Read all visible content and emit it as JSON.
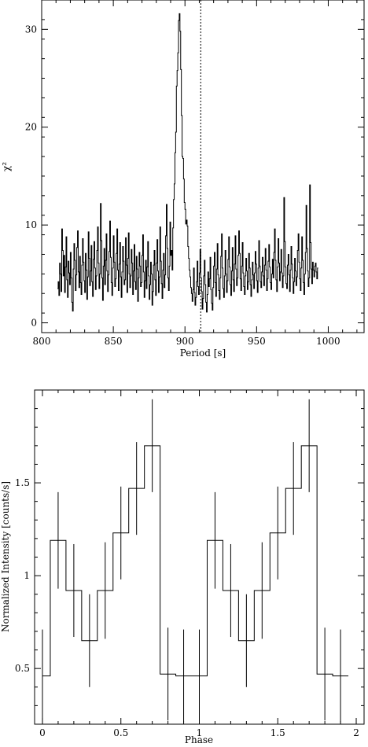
{
  "chart_data": [
    {
      "type": "line",
      "drawstyle": "steps",
      "xlabel": "Period [s]",
      "ylabel": "χ²",
      "xlim": [
        800,
        1025
      ],
      "ylim": [
        -1,
        33
      ],
      "xticks": [
        800,
        850,
        900,
        950,
        1000
      ],
      "yticks": [
        0,
        10,
        20,
        30
      ],
      "xtick_labels": [
        "800",
        "850",
        "900",
        "950",
        "1000"
      ],
      "ytick_labels": [
        "0",
        "10",
        "20",
        "30"
      ],
      "marker_line": {
        "x": 911,
        "style": "dotted"
      },
      "series": [
        {
          "x_start": 811,
          "x_step": 0.5,
          "values": [
            3.5,
            4.2,
            2.8,
            6.1,
            5.0,
            3.2,
            9.6,
            7.4,
            4.8,
            6.9,
            3.1,
            5.7,
            8.8,
            4.4,
            2.6,
            6.3,
            5.1,
            3.9,
            7.2,
            4.6,
            2.1,
            1.2,
            5.5,
            8.1,
            6.4,
            3.3,
            4.9,
            7.7,
            9.4,
            5.2,
            3.6,
            6.8,
            4.1,
            2.9,
            5.9,
            8.6,
            6.2,
            4.3,
            3.1,
            7.1,
            5.4,
            2.4,
            4.7,
            9.3,
            6.6,
            3.8,
            5.3,
            7.9,
            4.2,
            2.7,
            6.5,
            8.3,
            5.6,
            3.4,
            4.8,
            7.4,
            9.8,
            6.1,
            3.5,
            5.0,
            12.2,
            8.4,
            4.6,
            2.3,
            5.8,
            7.6,
            3.9,
            6.4,
            9.1,
            5.3,
            3.2,
            4.9,
            7.3,
            10.4,
            6.7,
            4.1,
            2.8,
            5.6,
            8.9,
            6.2,
            3.7,
            4.5,
            7.1,
            9.6,
            5.4,
            3.3,
            6.0,
            8.2,
            4.7,
            2.6,
            5.2,
            7.8,
            6.3,
            3.9,
            4.4,
            8.7,
            5.9,
            3.1,
            6.6,
            9.2,
            5.0,
            3.6,
            4.8,
            7.5,
            6.1,
            2.9,
            5.3,
            8.0,
            4.2,
            3.4,
            6.8,
            5.5,
            2.2,
            4.6,
            7.2,
            5.8,
            3.7,
            4.1,
            6.9,
            9.0,
            5.2,
            2.6,
            4.3,
            6.4,
            3.5,
            5.7,
            8.3,
            4.8,
            2.4,
            3.9,
            6.2,
            5.0,
            1.8,
            3.2,
            5.9,
            7.4,
            4.4,
            2.8,
            6.1,
            8.5,
            5.3,
            3.1,
            4.7,
            9.8,
            6.3,
            4.0,
            2.5,
            5.4,
            7.1,
            3.6,
            4.9,
            8.9,
            12.1,
            7.6,
            4.6,
            3.3,
            5.8,
            10.3,
            6.9,
            7.4,
            5.4,
            9.7,
            12.6,
            14.2,
            17.4,
            19.5,
            24.2,
            25.8,
            27.6,
            30.9,
            31.6,
            29.8,
            25.9,
            21.2,
            17.0,
            16.8,
            14.7,
            12.3,
            11.6,
            10.1,
            10.5,
            9.9,
            7.8,
            6.6,
            5.4,
            4.7,
            3.6,
            3.0,
            2.2,
            3.4,
            5.6,
            3.1,
            1.8,
            2.6,
            4.2,
            6.3,
            3.7,
            2.9,
            5.1,
            7.5,
            4.6,
            3.2,
            1.4,
            2.5,
            4.8,
            6.4,
            3.9,
            2.1,
            1.1,
            2.9,
            5.2,
            3.7,
            4.5,
            6.7,
            3.4,
            2.0,
            1.3,
            3.6,
            5.8,
            7.2,
            4.1,
            2.7,
            5.5,
            8.1,
            4.9,
            3.3,
            2.4,
            4.6,
            6.8,
            9.1,
            5.6,
            3.5,
            2.6,
            4.8,
            7.4,
            5.0,
            3.1,
            4.3,
            6.5,
            8.8,
            5.7,
            3.9,
            2.8,
            5.3,
            7.7,
            4.4,
            3.2,
            6.0,
            8.9,
            5.5,
            3.8,
            4.6,
            6.9,
            9.4,
            7.1,
            4.5,
            3.3,
            5.8,
            8.2,
            5.1,
            3.7,
            2.9,
            4.8,
            6.6,
            5.3,
            3.4,
            4.2,
            7.1,
            5.6,
            3.9,
            2.7,
            4.4,
            6.2,
            4.9,
            3.5,
            5.1,
            7.3,
            6.0,
            4.3,
            3.1,
            5.6,
            8.4,
            5.8,
            4.2,
            3.6,
            5.2,
            6.7,
            4.8,
            3.8,
            5.9,
            7.6,
            5.4,
            3.3,
            4.5,
            6.3,
            8.0,
            5.7,
            4.1,
            3.4,
            5.0,
            6.5,
            4.6,
            7.2,
            9.6,
            6.4,
            4.4,
            3.2,
            5.7,
            8.6,
            6.1,
            4.3,
            5.2,
            7.5,
            5.1,
            3.6,
            4.8,
            12.8,
            8.3,
            5.7,
            4.0,
            3.5,
            5.9,
            7.0,
            4.9,
            3.2,
            5.4,
            7.8,
            6.0,
            4.6,
            3.0,
            4.2,
            6.6,
            5.3,
            3.8,
            4.7,
            7.4,
            9.1,
            6.2,
            4.5,
            3.3,
            5.6,
            8.8,
            6.4,
            4.1,
            2.9,
            5.0,
            7.2,
            12.0,
            7.6,
            5.3,
            3.7,
            4.6,
            14.1,
            8.2,
            5.5,
            4.0,
            6.2,
            5.4,
            4.7,
            5.8,
            6.1,
            5.2,
            4.5,
            5.6
          ]
        }
      ]
    },
    {
      "type": "step",
      "xlabel": "Phase",
      "ylabel": "Normalized Intensity [counts/s]",
      "xlim": [
        -0.05,
        2.05
      ],
      "ylim": [
        0.2,
        2.0
      ],
      "xticks": [
        0,
        0.5,
        1,
        1.5,
        2
      ],
      "yticks": [
        0.5,
        1,
        1.5
      ],
      "xtick_labels": [
        "0",
        "0.5",
        "1",
        "1.5",
        "2"
      ],
      "ytick_labels": [
        "0.5",
        "1",
        "1.5"
      ],
      "bin_width": 0.1,
      "series": [
        {
          "phase": [
            0.0,
            0.1,
            0.2,
            0.3,
            0.4,
            0.5,
            0.6,
            0.7,
            0.8,
            0.9,
            1.0,
            1.1,
            1.2,
            1.3,
            1.4,
            1.5,
            1.6,
            1.7,
            1.8,
            1.9
          ],
          "values": [
            0.46,
            1.19,
            0.92,
            0.65,
            0.92,
            1.23,
            1.47,
            1.7,
            0.47,
            0.46,
            0.46,
            1.19,
            0.92,
            0.65,
            0.92,
            1.23,
            1.47,
            1.7,
            0.47,
            0.46
          ],
          "errors": [
            0.25,
            0.26,
            0.25,
            0.25,
            0.26,
            0.25,
            0.25,
            0.25,
            0.25,
            0.25,
            0.25,
            0.26,
            0.25,
            0.25,
            0.26,
            0.25,
            0.25,
            0.25,
            0.25,
            0.25
          ]
        }
      ]
    }
  ]
}
